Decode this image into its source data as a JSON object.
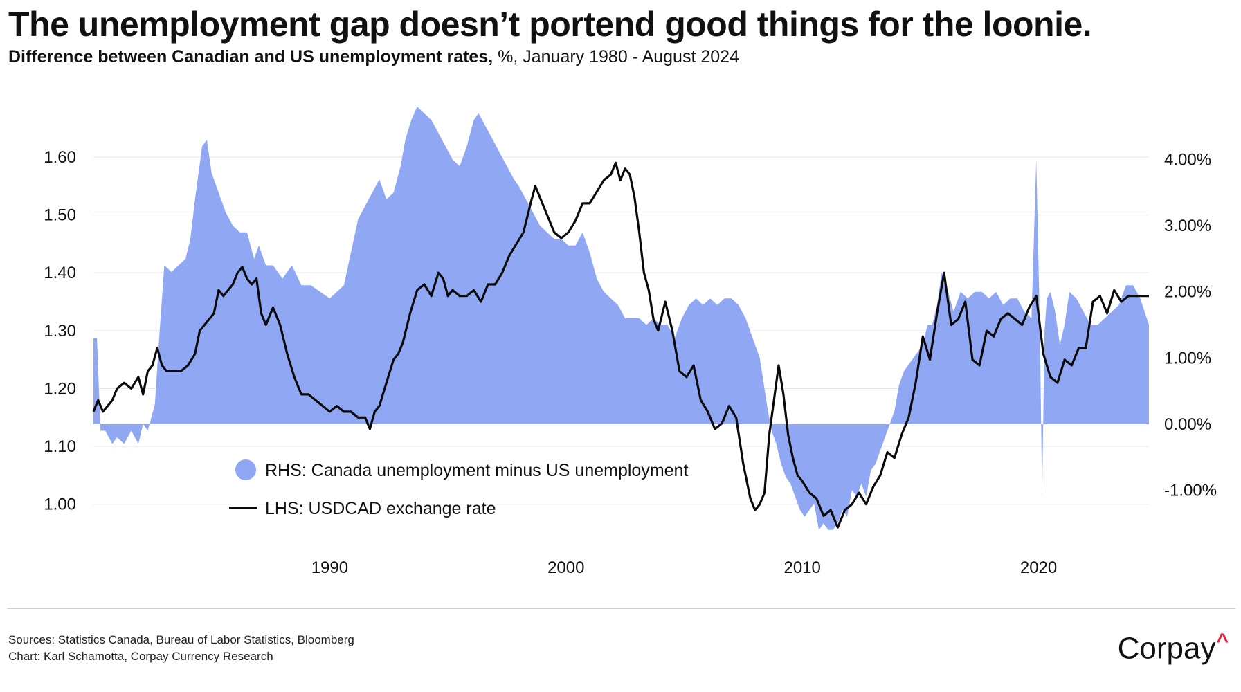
{
  "title": "The unemployment gap doesn’t portend good things for the loonie.",
  "subtitle_main": "Difference between Canadian and US unemployment rates,",
  "subtitle_rest": " %, January 1980 - August 2024",
  "footer": {
    "sources": "Sources: Statistics Canada, Bureau of Labor Statistics, Bloomberg",
    "credit": "Chart: Karl Schamotta, Corpay Currency Research"
  },
  "logo_text": "Corpay",
  "logo_caret": "^",
  "colors": {
    "area": "#90a7f3",
    "line": "#0a0a0a",
    "grid": "#e6e6e6",
    "logo_accent": "#e0223a"
  },
  "chart_data": {
    "type": "line",
    "title": "The unemployment gap doesn’t portend good things for the loonie.",
    "x_range": [
      1980.0,
      2024.67
    ],
    "x_ticks": [
      1990,
      2000,
      2010,
      2020
    ],
    "left_axis": {
      "label": "LHS",
      "ylim": [
        0.91,
        1.71
      ],
      "ticks": [
        1.0,
        1.1,
        1.2,
        1.3,
        1.4,
        1.5,
        1.6
      ],
      "tick_labels": [
        "1.00",
        "1.10",
        "1.20",
        "1.30",
        "1.40",
        "1.50",
        "1.60"
      ]
    },
    "right_axis": {
      "label": "RHS",
      "ylim": [
        -2.0,
        5.0
      ],
      "ticks": [
        -1,
        0,
        1,
        2,
        3,
        4
      ],
      "tick_labels": [
        "-1.00%",
        "0.00%",
        "1.00%",
        "2.00%",
        "3.00%",
        "4.00%"
      ]
    },
    "legend": [
      {
        "name": "RHS: Canada unemployment minus US unemployment",
        "marker": "circle"
      },
      {
        "name": "LHS: USDCAD exchange rate",
        "marker": "line"
      }
    ],
    "series": [
      {
        "name": "Canada unemployment minus US unemployment",
        "kind": "area",
        "axis": "right",
        "x": [
          1980.0,
          1980.15,
          1980.3,
          1980.5,
          1980.8,
          1981.0,
          1981.3,
          1981.6,
          1981.9,
          1982.1,
          1982.3,
          1982.6,
          1982.8,
          1983.0,
          1983.3,
          1983.6,
          1983.9,
          1984.1,
          1984.3,
          1984.45,
          1984.6,
          1984.8,
          1985.0,
          1985.3,
          1985.6,
          1985.9,
          1986.2,
          1986.5,
          1986.8,
          1987.0,
          1987.3,
          1987.6,
          1988.0,
          1988.4,
          1988.8,
          1989.2,
          1989.6,
          1990.0,
          1990.3,
          1990.6,
          1990.9,
          1991.2,
          1991.5,
          1991.8,
          1992.1,
          1992.4,
          1992.7,
          1993.0,
          1993.2,
          1993.45,
          1993.7,
          1994.0,
          1994.3,
          1994.6,
          1994.9,
          1995.2,
          1995.5,
          1995.8,
          1996.1,
          1996.3,
          1996.6,
          1996.9,
          1997.2,
          1997.5,
          1997.8,
          1998.0,
          1998.3,
          1998.6,
          1998.9,
          1999.2,
          1999.5,
          1999.8,
          2000.1,
          2000.4,
          2000.7,
          2001.0,
          2001.3,
          2001.6,
          2001.9,
          2002.2,
          2002.5,
          2002.8,
          2003.1,
          2003.4,
          2003.7,
          2004.0,
          2004.3,
          2004.6,
          2004.9,
          2005.2,
          2005.5,
          2005.8,
          2006.1,
          2006.4,
          2006.7,
          2007.0,
          2007.3,
          2007.6,
          2007.9,
          2008.2,
          2008.5,
          2008.7,
          2008.9,
          2009.1,
          2009.3,
          2009.5,
          2009.7,
          2009.9,
          2010.1,
          2010.3,
          2010.5,
          2010.7,
          2010.9,
          2011.1,
          2011.3,
          2011.5,
          2011.7,
          2011.9,
          2012.1,
          2012.3,
          2012.5,
          2012.7,
          2012.9,
          2013.1,
          2013.3,
          2013.5,
          2013.7,
          2013.9,
          2014.1,
          2014.3,
          2014.5,
          2014.7,
          2014.9,
          2015.1,
          2015.3,
          2015.5,
          2015.7,
          2015.9,
          2016.1,
          2016.4,
          2016.7,
          2017.0,
          2017.3,
          2017.6,
          2017.9,
          2018.2,
          2018.5,
          2018.8,
          2019.1,
          2019.4,
          2019.7,
          2019.9,
          2020.05,
          2020.15,
          2020.25,
          2020.35,
          2020.5,
          2020.7,
          2020.9,
          2021.1,
          2021.3,
          2021.6,
          2021.9,
          2022.2,
          2022.5,
          2022.8,
          2023.1,
          2023.4,
          2023.7,
          2024.0,
          2024.3,
          2024.67
        ],
        "values": [
          1.3,
          1.3,
          -0.1,
          -0.1,
          -0.3,
          -0.2,
          -0.3,
          -0.1,
          -0.3,
          0.0,
          -0.1,
          0.3,
          1.4,
          2.4,
          2.3,
          2.4,
          2.5,
          2.8,
          3.4,
          3.8,
          4.2,
          4.3,
          3.8,
          3.5,
          3.2,
          3.0,
          2.9,
          2.9,
          2.5,
          2.7,
          2.4,
          2.4,
          2.2,
          2.4,
          2.1,
          2.1,
          2.0,
          1.9,
          2.0,
          2.1,
          2.6,
          3.1,
          3.3,
          3.5,
          3.7,
          3.4,
          3.5,
          3.9,
          4.3,
          4.6,
          4.8,
          4.7,
          4.6,
          4.4,
          4.2,
          4.0,
          3.9,
          4.2,
          4.6,
          4.7,
          4.5,
          4.3,
          4.1,
          3.9,
          3.7,
          3.6,
          3.4,
          3.2,
          3.0,
          2.9,
          2.8,
          2.8,
          2.7,
          2.7,
          2.9,
          2.6,
          2.2,
          2.0,
          1.9,
          1.8,
          1.6,
          1.6,
          1.6,
          1.5,
          1.6,
          1.5,
          1.5,
          1.3,
          1.6,
          1.8,
          1.9,
          1.8,
          1.9,
          1.8,
          1.9,
          1.9,
          1.8,
          1.6,
          1.3,
          1.0,
          0.3,
          -0.1,
          -0.3,
          -0.6,
          -0.8,
          -0.9,
          -1.1,
          -1.3,
          -1.4,
          -1.3,
          -1.2,
          -1.6,
          -1.5,
          -1.6,
          -1.6,
          -1.5,
          -1.3,
          -1.4,
          -1.0,
          -1.1,
          -0.9,
          -1.1,
          -0.7,
          -0.6,
          -0.4,
          -0.2,
          0.0,
          0.2,
          0.6,
          0.8,
          0.9,
          1.0,
          1.1,
          1.2,
          1.5,
          1.5,
          1.8,
          2.3,
          2.1,
          1.7,
          2.0,
          1.9,
          2.0,
          2.0,
          1.9,
          2.0,
          1.8,
          1.9,
          1.9,
          1.7,
          1.6,
          4.0,
          1.5,
          -1.1,
          1.4,
          1.9,
          2.0,
          1.7,
          1.2,
          1.5,
          2.0,
          1.9,
          1.7,
          1.5,
          1.5,
          1.6,
          1.7,
          1.8,
          2.1,
          2.1,
          1.9,
          1.5
        ]
      },
      {
        "name": "USDCAD exchange rate",
        "kind": "line",
        "axis": "left",
        "x": [
          1980.0,
          1980.2,
          1980.4,
          1980.6,
          1980.8,
          1981.0,
          1981.3,
          1981.6,
          1981.9,
          1982.1,
          1982.3,
          1982.5,
          1982.7,
          1982.9,
          1983.1,
          1983.4,
          1983.7,
          1984.0,
          1984.3,
          1984.5,
          1984.7,
          1984.9,
          1985.1,
          1985.3,
          1985.5,
          1985.7,
          1985.9,
          1986.1,
          1986.3,
          1986.5,
          1986.7,
          1986.9,
          1987.1,
          1987.3,
          1987.6,
          1987.9,
          1988.2,
          1988.5,
          1988.8,
          1989.1,
          1989.4,
          1989.7,
          1990.0,
          1990.3,
          1990.6,
          1990.9,
          1991.2,
          1991.5,
          1991.7,
          1991.9,
          1992.1,
          1992.4,
          1992.7,
          1992.9,
          1993.1,
          1993.4,
          1993.7,
          1994.0,
          1994.3,
          1994.6,
          1994.8,
          1995.0,
          1995.2,
          1995.5,
          1995.8,
          1996.1,
          1996.4,
          1996.7,
          1997.0,
          1997.3,
          1997.6,
          1997.9,
          1998.2,
          1998.5,
          1998.7,
          1998.9,
          1999.2,
          1999.5,
          1999.8,
          2000.1,
          2000.4,
          2000.7,
          2001.0,
          2001.3,
          2001.6,
          2001.9,
          2002.1,
          2002.3,
          2002.5,
          2002.7,
          2002.9,
          2003.1,
          2003.3,
          2003.5,
          2003.7,
          2003.9,
          2004.2,
          2004.5,
          2004.8,
          2005.1,
          2005.4,
          2005.7,
          2006.0,
          2006.3,
          2006.6,
          2006.9,
          2007.2,
          2007.5,
          2007.8,
          2008.0,
          2008.2,
          2008.4,
          2008.6,
          2008.8,
          2009.0,
          2009.2,
          2009.4,
          2009.6,
          2009.8,
          2010.0,
          2010.3,
          2010.6,
          2010.9,
          2011.2,
          2011.5,
          2011.8,
          2012.1,
          2012.4,
          2012.7,
          2013.0,
          2013.3,
          2013.6,
          2013.9,
          2014.2,
          2014.5,
          2014.8,
          2015.1,
          2015.4,
          2015.7,
          2016.0,
          2016.3,
          2016.6,
          2016.9,
          2017.2,
          2017.5,
          2017.8,
          2018.1,
          2018.4,
          2018.7,
          2019.0,
          2019.3,
          2019.6,
          2019.9,
          2020.2,
          2020.5,
          2020.8,
          2021.1,
          2021.4,
          2021.7,
          2022.0,
          2022.3,
          2022.6,
          2022.9,
          2023.2,
          2023.5,
          2023.8,
          2024.1,
          2024.4,
          2024.67
        ],
        "values": [
          1.16,
          1.18,
          1.16,
          1.17,
          1.18,
          1.2,
          1.21,
          1.2,
          1.22,
          1.19,
          1.23,
          1.24,
          1.27,
          1.24,
          1.23,
          1.23,
          1.23,
          1.24,
          1.26,
          1.3,
          1.31,
          1.32,
          1.33,
          1.37,
          1.36,
          1.37,
          1.38,
          1.4,
          1.41,
          1.39,
          1.38,
          1.39,
          1.33,
          1.31,
          1.34,
          1.31,
          1.26,
          1.22,
          1.19,
          1.19,
          1.18,
          1.17,
          1.16,
          1.17,
          1.16,
          1.16,
          1.15,
          1.15,
          1.13,
          1.16,
          1.17,
          1.21,
          1.25,
          1.26,
          1.28,
          1.33,
          1.37,
          1.38,
          1.36,
          1.4,
          1.39,
          1.36,
          1.37,
          1.36,
          1.36,
          1.37,
          1.35,
          1.38,
          1.38,
          1.4,
          1.43,
          1.45,
          1.47,
          1.52,
          1.55,
          1.53,
          1.5,
          1.47,
          1.46,
          1.47,
          1.49,
          1.52,
          1.52,
          1.54,
          1.56,
          1.57,
          1.59,
          1.56,
          1.58,
          1.57,
          1.53,
          1.47,
          1.4,
          1.37,
          1.32,
          1.3,
          1.35,
          1.3,
          1.23,
          1.22,
          1.24,
          1.18,
          1.16,
          1.13,
          1.14,
          1.17,
          1.15,
          1.07,
          1.01,
          0.99,
          1.0,
          1.02,
          1.12,
          1.18,
          1.24,
          1.19,
          1.12,
          1.08,
          1.05,
          1.04,
          1.02,
          1.01,
          0.98,
          0.99,
          0.96,
          0.99,
          1.0,
          1.02,
          1.0,
          1.03,
          1.05,
          1.09,
          1.08,
          1.12,
          1.15,
          1.21,
          1.29,
          1.25,
          1.33,
          1.4,
          1.31,
          1.32,
          1.35,
          1.25,
          1.24,
          1.3,
          1.29,
          1.32,
          1.33,
          1.32,
          1.31,
          1.34,
          1.36,
          1.26,
          1.22,
          1.21,
          1.25,
          1.24,
          1.27,
          1.27,
          1.35,
          1.36,
          1.33,
          1.37,
          1.35,
          1.36,
          1.36,
          1.36,
          1.36
        ]
      }
    ]
  }
}
